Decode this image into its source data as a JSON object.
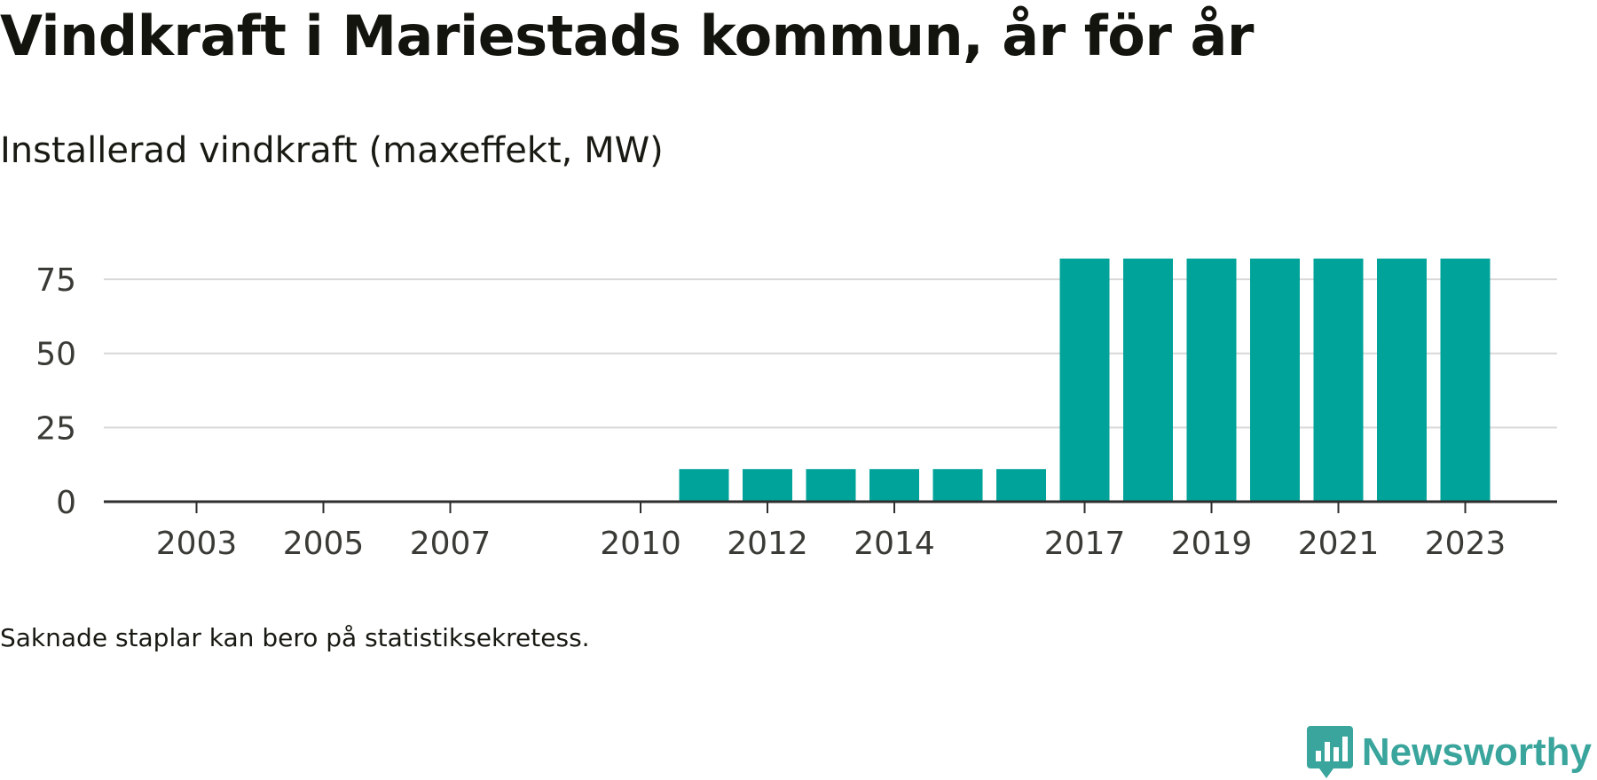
{
  "title": "Vindkraft i Mariestads kommun, år för år",
  "subtitle": "Installerad vindkraft (maxeffekt, MW)",
  "footnote": "Saknade staplar kan bero på statistiksekretess.",
  "brand": {
    "name": "Newsworthy",
    "icon": "newsworthy-logo-icon",
    "color": "#3aa59c"
  },
  "colors": {
    "bar": "#00a39a",
    "gridline": "#d8d8d8",
    "axis": "#2e2e2e",
    "text": "#1a1a14"
  },
  "chart_data": {
    "type": "bar",
    "title": "Vindkraft i Mariestads kommun, år för år",
    "subtitle": "Installerad vindkraft (maxeffekt, MW)",
    "xlabel": "",
    "ylabel": "",
    "categories": [
      "2002",
      "2003",
      "2004",
      "2005",
      "2006",
      "2007",
      "2008",
      "2009",
      "2010",
      "2011",
      "2012",
      "2013",
      "2014",
      "2015",
      "2016",
      "2017",
      "2018",
      "2019",
      "2020",
      "2021",
      "2022",
      "2023"
    ],
    "x_tick_labels": [
      "2003",
      "2005",
      "2007",
      "2010",
      "2012",
      "2014",
      "2017",
      "2019",
      "2021",
      "2023"
    ],
    "values": [
      0,
      0,
      0,
      0,
      0,
      0,
      0,
      0,
      0,
      11,
      11,
      11,
      11,
      11,
      11,
      82,
      82,
      82,
      82,
      82,
      82,
      82
    ],
    "y_ticks": [
      0,
      25,
      50,
      75
    ],
    "ylim": [
      0,
      84
    ],
    "grid": true,
    "legend": "none"
  }
}
